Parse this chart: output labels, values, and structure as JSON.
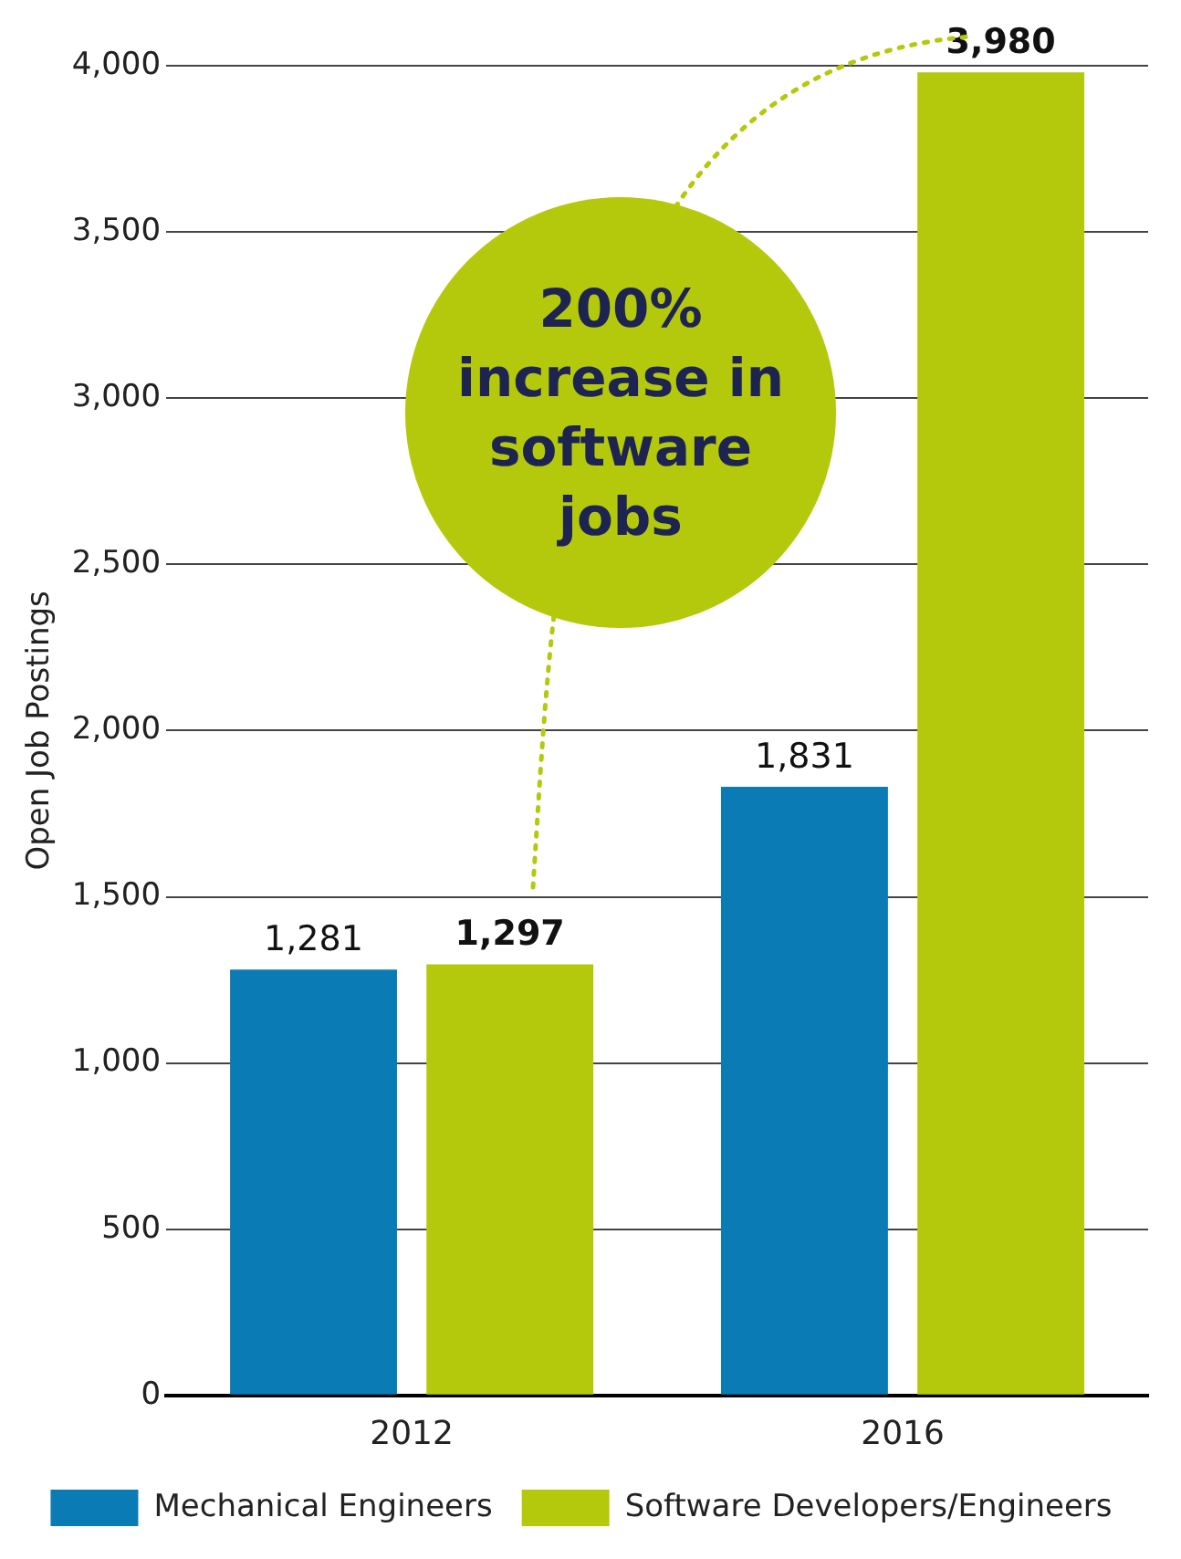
{
  "chart_data": {
    "type": "bar",
    "ylabel": "Open Job Postings",
    "categories": [
      "2012",
      "2016"
    ],
    "series": [
      {
        "name": "Mechanical Engineers",
        "color": "#0a7bb5",
        "values": [
          1281,
          1831
        ],
        "value_labels": [
          "1,281",
          "1,831"
        ]
      },
      {
        "name": "Software Developers/Engineers",
        "color": "#b5c90c",
        "values": [
          1297,
          3980
        ],
        "value_labels": [
          "1,297",
          "3,980"
        ]
      }
    ],
    "ylim": [
      0,
      4000
    ],
    "yticks": [
      0,
      500,
      {
        "value": 1000,
        "label": "1,000"
      },
      {
        "value": 1500,
        "label": "1,500"
      },
      {
        "value": 2000,
        "label": "2,000"
      },
      {
        "value": 2500,
        "label": "2,500"
      },
      {
        "value": 3000,
        "label": "3,000"
      },
      {
        "value": 3500,
        "label": "3,500"
      },
      {
        "value": 4000,
        "label": "4,000"
      }
    ],
    "grid": "y",
    "legend": "bottom",
    "annotations": [
      "200% increase in software jobs"
    ]
  }
}
